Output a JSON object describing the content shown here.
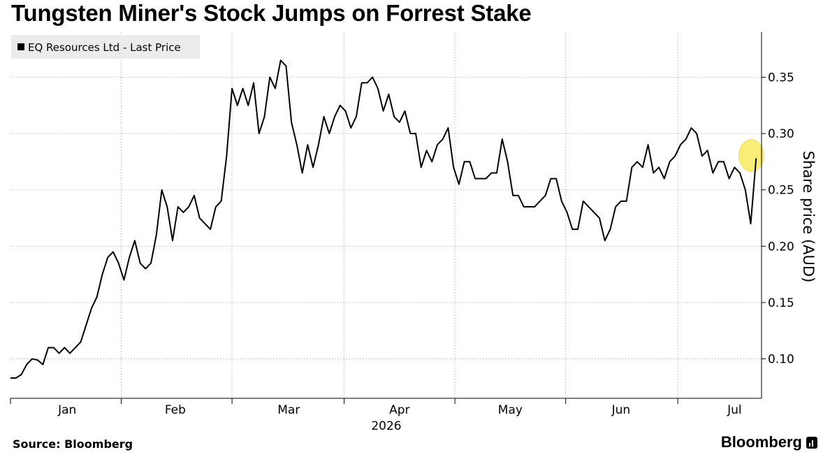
{
  "title": "Tungsten Miner's Stock Jumps on Forrest Stake",
  "source": "Source: Bloomberg",
  "brand": "Bloomberg",
  "chart_data": {
    "type": "line",
    "ylabel": "Share price (AUD)",
    "ylim": [
      0.065,
      0.39
    ],
    "yticks": [
      0.1,
      0.15,
      0.2,
      0.25,
      0.3,
      0.35
    ],
    "ytick_labels": [
      "0.10",
      "0.15",
      "0.20",
      "0.25",
      "0.30",
      "0.35"
    ],
    "x_range": [
      0,
      139
    ],
    "xticks": [
      {
        "label": "Jan",
        "x": 10.5
      },
      {
        "label": "Feb",
        "x": 30.5
      },
      {
        "label": "Mar",
        "x": 51.5
      },
      {
        "label": "Apr",
        "x": 72
      },
      {
        "label": "May",
        "x": 92.5
      },
      {
        "label": "Jun",
        "x": 113
      },
      {
        "label": "Jul",
        "x": 134
      }
    ],
    "year_label": "2026",
    "legend": {
      "label": "EQ Resources Ltd - Last Price",
      "placement": "top-left"
    },
    "highlight": {
      "x": 137,
      "color": "#f7e64a"
    },
    "grid": true,
    "line_color": "#000000",
    "series": [
      {
        "name": "EQ Resources Ltd - Last Price",
        "values": [
          0.083,
          0.083,
          0.086,
          0.095,
          0.1,
          0.099,
          0.095,
          0.11,
          0.11,
          0.105,
          0.11,
          0.105,
          0.11,
          0.115,
          0.13,
          0.145,
          0.155,
          0.175,
          0.19,
          0.195,
          0.185,
          0.17,
          0.19,
          0.205,
          0.185,
          0.18,
          0.185,
          0.21,
          0.25,
          0.235,
          0.205,
          0.235,
          0.23,
          0.235,
          0.245,
          0.225,
          0.22,
          0.215,
          0.235,
          0.24,
          0.28,
          0.34,
          0.325,
          0.34,
          0.325,
          0.345,
          0.3,
          0.315,
          0.35,
          0.34,
          0.365,
          0.36,
          0.31,
          0.29,
          0.265,
          0.29,
          0.27,
          0.29,
          0.315,
          0.3,
          0.315,
          0.325,
          0.32,
          0.305,
          0.315,
          0.345,
          0.345,
          0.35,
          0.34,
          0.32,
          0.335,
          0.315,
          0.31,
          0.32,
          0.3,
          0.3,
          0.27,
          0.285,
          0.275,
          0.29,
          0.295,
          0.305,
          0.27,
          0.255,
          0.275,
          0.275,
          0.26,
          0.26,
          0.26,
          0.265,
          0.265,
          0.295,
          0.275,
          0.245,
          0.245,
          0.235,
          0.235,
          0.235,
          0.24,
          0.245,
          0.26,
          0.26,
          0.24,
          0.23,
          0.215,
          0.215,
          0.24,
          0.235,
          0.23,
          0.225,
          0.205,
          0.215,
          0.235,
          0.24,
          0.24,
          0.27,
          0.275,
          0.27,
          0.29,
          0.265,
          0.27,
          0.26,
          0.275,
          0.28,
          0.29,
          0.295,
          0.305,
          0.3,
          0.28,
          0.285,
          0.265,
          0.275,
          0.275,
          0.26,
          0.27,
          0.265,
          0.25,
          0.22,
          0.278
        ]
      }
    ]
  }
}
